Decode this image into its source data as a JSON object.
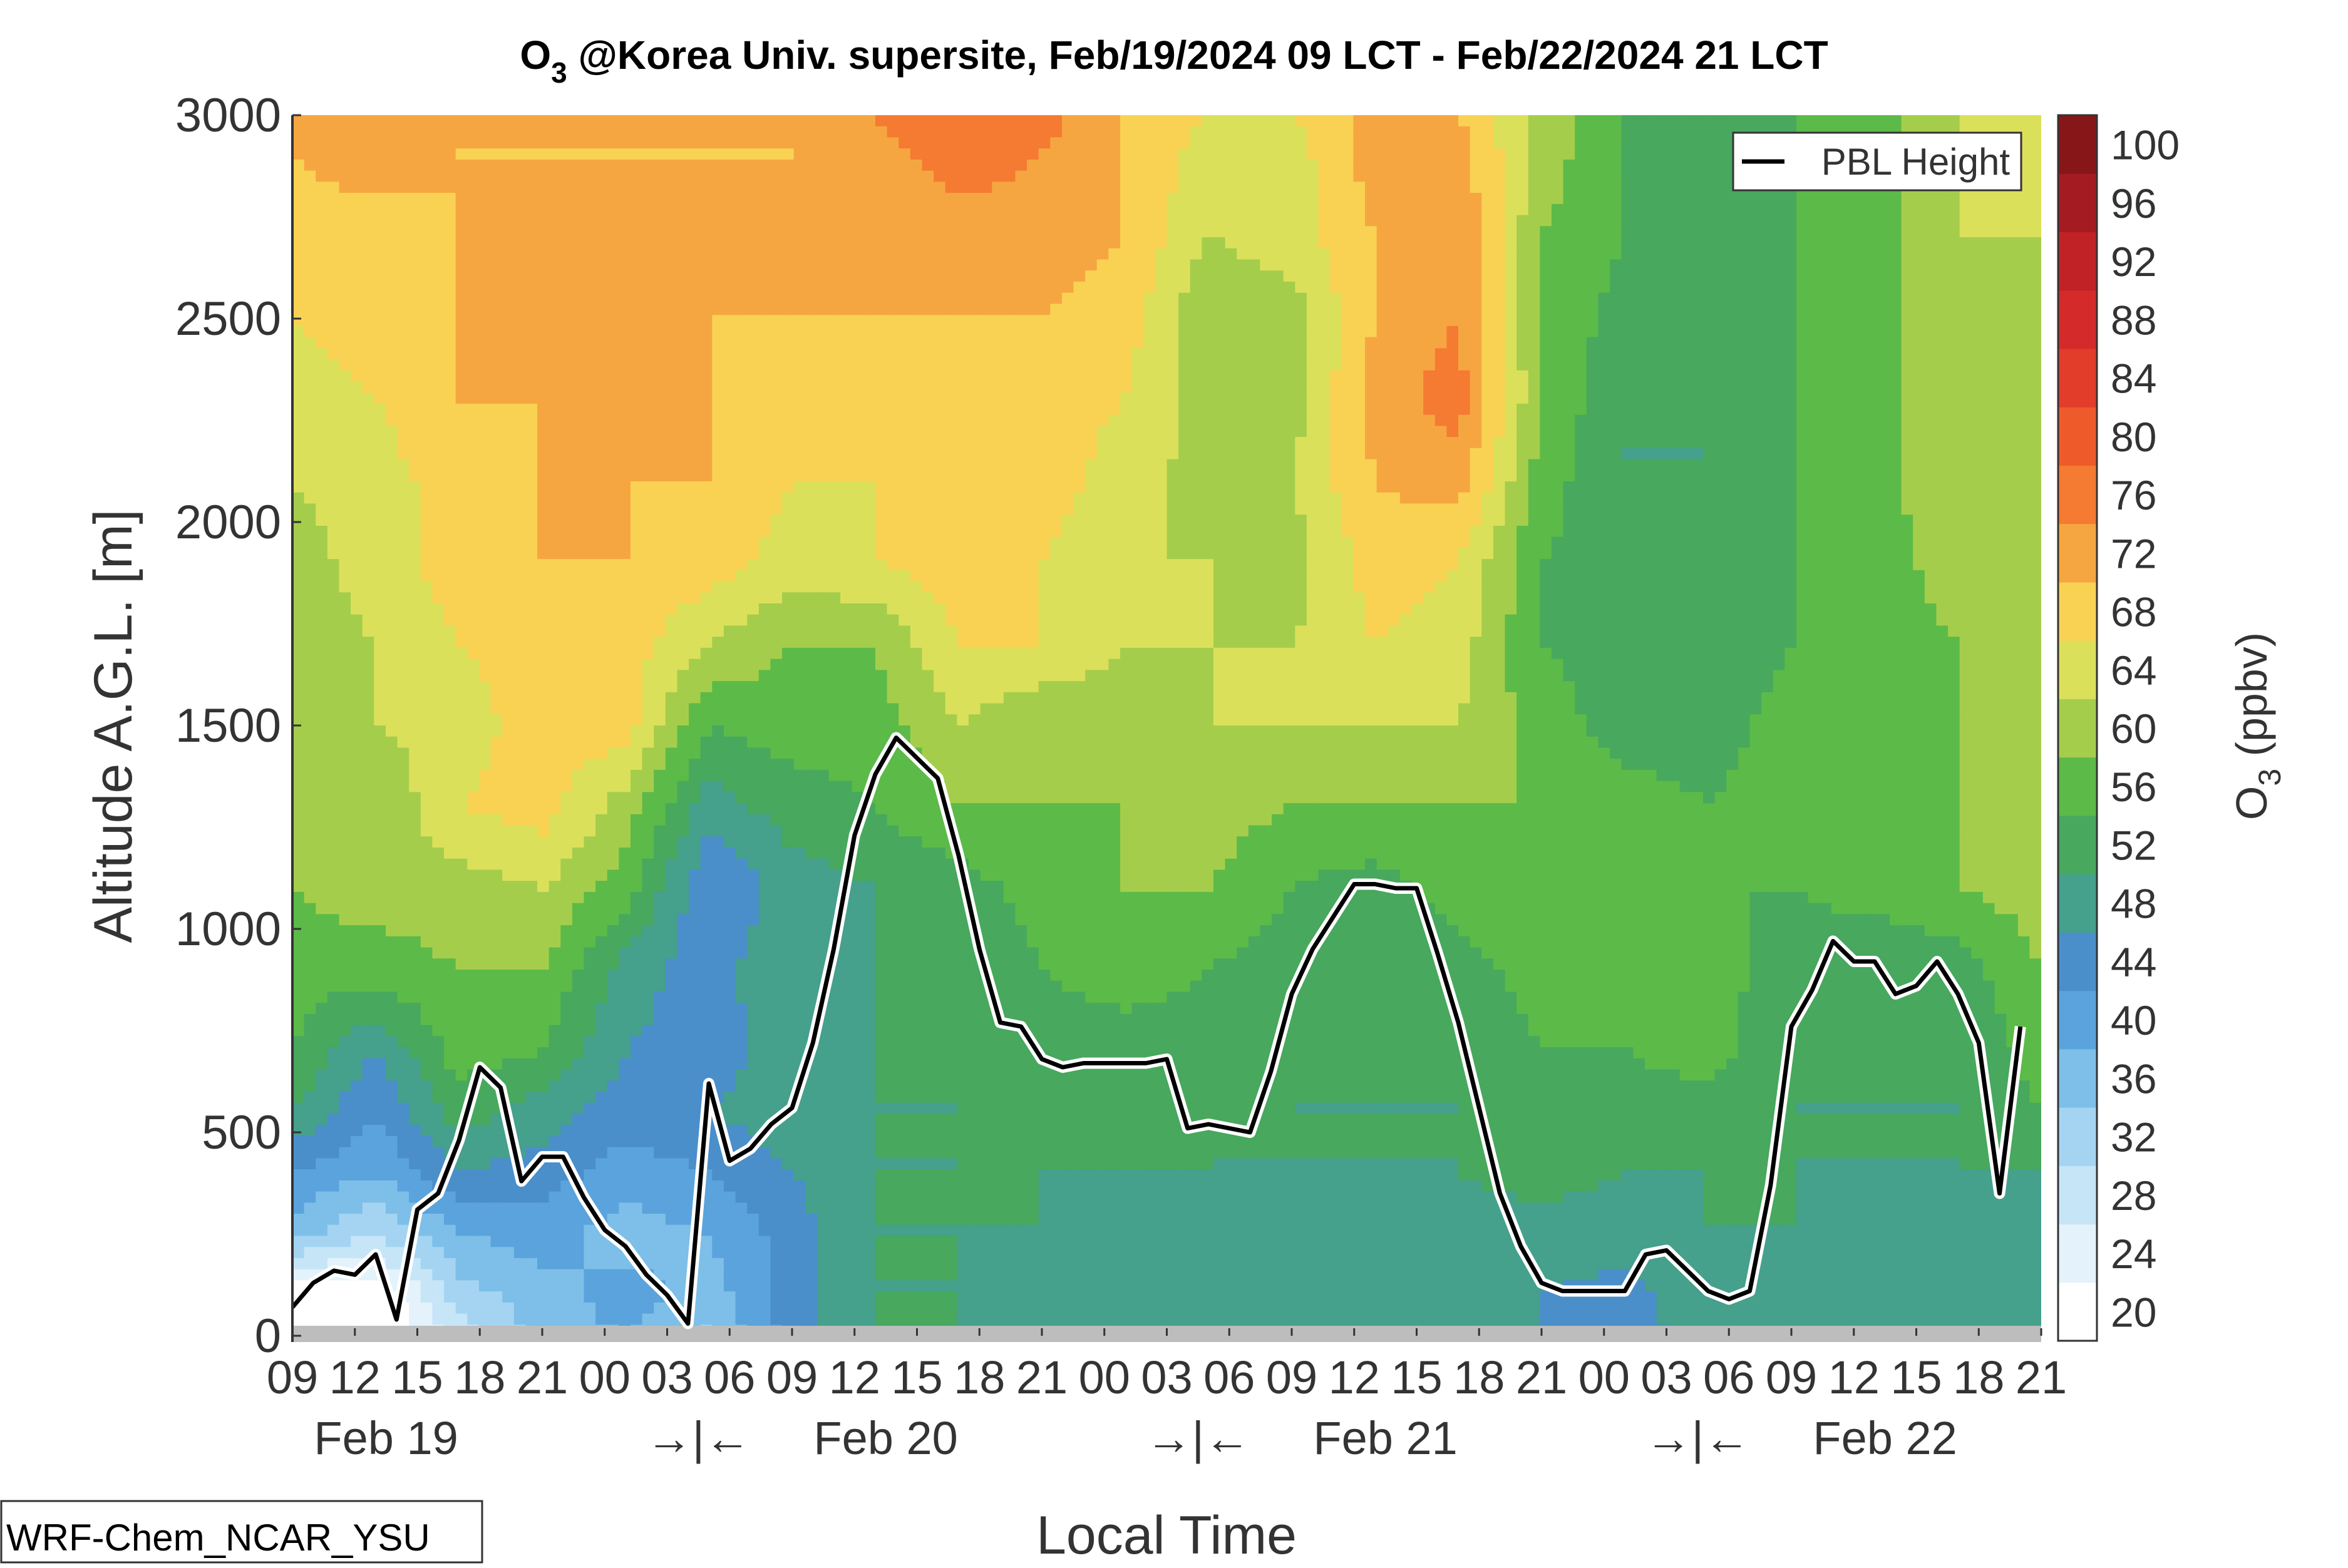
{
  "chart_data": {
    "type": "heatmap",
    "title": {
      "species": "O",
      "subscript": "3",
      "rest": " @Korea Univ. supersite, Feb/19/2024 09 LCT - Feb/22/2024 21 LCT"
    },
    "xlabel": "Local Time",
    "ylabel": "Altitude A.G.L. [m]",
    "x_tick_labels": [
      "09",
      "12",
      "15",
      "18",
      "21",
      "00",
      "03",
      "06",
      "09",
      "12",
      "15",
      "18",
      "21",
      "00",
      "03",
      "06",
      "09",
      "12",
      "15",
      "18",
      "21",
      "00",
      "03",
      "06",
      "09",
      "12",
      "15",
      "18",
      "21"
    ],
    "x_day_labels": [
      {
        "text": "Feb 19",
        "at_tick": 1.5
      },
      {
        "text": "→|←",
        "at_tick": 6.5
      },
      {
        "text": "Feb 20",
        "at_tick": 9.5
      },
      {
        "text": "→|←",
        "at_tick": 14.5
      },
      {
        "text": "Feb 21",
        "at_tick": 17.5
      },
      {
        "text": "→|←",
        "at_tick": 22.5
      },
      {
        "text": "Feb 22",
        "at_tick": 25.5
      }
    ],
    "ylim": [
      0,
      3000
    ],
    "y_ticks": [
      0,
      500,
      1000,
      1500,
      2000,
      2500,
      3000
    ],
    "colorbar": {
      "label": "O",
      "label_subscript": "3",
      "label_unit": " (ppbv)",
      "levels": [
        20,
        24,
        28,
        32,
        36,
        40,
        44,
        48,
        52,
        56,
        60,
        64,
        68,
        72,
        76,
        80,
        84,
        88,
        92,
        96,
        100
      ],
      "colors": [
        "#ffffff",
        "#e3f2fb",
        "#c6e5f7",
        "#a4d4f1",
        "#7dbfe8",
        "#5ba3dc",
        "#4a8fca",
        "#45a08c",
        "#47a85e",
        "#5cba48",
        "#a5cd4c",
        "#dbe05a",
        "#f9d253",
        "#f6a640",
        "#f57a32",
        "#ee5a2a",
        "#e23c2a",
        "#d42a2a",
        "#c02226",
        "#a41c22",
        "#861618"
      ]
    },
    "legend": {
      "entries": [
        "PBL Height"
      ],
      "placement": "top-right"
    },
    "series": [
      {
        "name": "PBL Height",
        "x_hours": [
          0,
          1,
          2,
          3,
          4,
          5,
          6,
          7,
          8,
          9,
          10,
          11,
          12,
          13,
          14,
          15,
          16,
          17,
          18,
          19,
          20,
          21,
          22,
          23,
          24,
          25,
          26,
          27,
          28,
          29,
          30,
          31,
          32,
          33,
          34,
          35,
          36,
          37,
          38,
          39,
          40,
          41,
          42,
          43,
          44,
          45,
          46,
          47,
          48,
          49,
          50,
          51,
          52,
          53,
          54,
          55,
          56,
          57,
          58,
          59,
          60,
          61,
          62,
          63,
          64,
          65,
          66,
          67,
          68,
          69,
          70,
          71,
          72,
          73,
          74,
          75,
          76,
          77,
          78,
          79,
          80,
          81,
          82,
          83,
          84
        ],
        "values": [
          70,
          130,
          160,
          150,
          200,
          40,
          310,
          350,
          480,
          660,
          610,
          380,
          440,
          440,
          340,
          260,
          220,
          150,
          100,
          30,
          620,
          430,
          460,
          520,
          560,
          720,
          950,
          1230,
          1380,
          1470,
          1420,
          1370,
          1180,
          950,
          770,
          760,
          680,
          660,
          670,
          670,
          670,
          670,
          680,
          510,
          520,
          510,
          500,
          650,
          840,
          950,
          1030,
          1110,
          1110,
          1100,
          1100,
          940,
          770,
          560,
          350,
          220,
          130,
          110,
          110,
          110,
          110,
          200,
          210,
          160,
          110,
          90,
          110,
          370,
          760,
          850,
          970,
          920,
          920,
          840,
          860,
          920,
          840,
          720,
          350,
          760
        ]
      }
    ],
    "ozone_field": {
      "x_hours": [
        0,
        4,
        8,
        12,
        16,
        20,
        24,
        28,
        32,
        36,
        40,
        44,
        48,
        52,
        56,
        60,
        64,
        68,
        72,
        76,
        80,
        84
      ],
      "z_levels": [
        0,
        100,
        250,
        400,
        550,
        700,
        900,
        1100,
        1300,
        1500,
        1700,
        1900,
        2100,
        2300,
        2500,
        2700,
        2900,
        3000
      ],
      "values": [
        [
          18,
          18,
          30,
          38,
          40,
          35,
          46,
          52,
          52,
          50,
          48,
          48,
          48,
          48,
          48,
          48,
          46,
          50,
          50,
          48,
          48,
          48
        ],
        [
          20,
          20,
          34,
          38,
          42,
          38,
          46,
          52,
          52,
          50,
          49,
          48,
          48,
          48,
          48,
          48,
          47,
          50,
          50,
          48,
          48,
          48
        ],
        [
          38,
          32,
          40,
          42,
          38,
          40,
          46,
          52,
          52,
          52,
          50,
          50,
          50,
          50,
          50,
          50,
          49,
          52,
          52,
          50,
          50,
          50
        ],
        [
          44,
          40,
          48,
          46,
          42,
          44,
          48,
          52,
          52,
          52,
          52,
          52,
          52,
          52,
          52,
          54,
          52,
          52,
          52,
          52,
          52,
          52
        ],
        [
          52,
          44,
          54,
          50,
          46,
          48,
          50,
          52,
          52,
          53,
          53,
          52,
          52,
          52,
          52,
          54,
          54,
          54,
          52,
          52,
          52,
          56
        ],
        [
          56,
          48,
          58,
          56,
          48,
          46,
          50,
          52,
          52,
          54,
          54,
          54,
          52,
          52,
          52,
          56,
          56,
          58,
          52,
          52,
          52,
          58
        ],
        [
          58,
          58,
          60,
          60,
          50,
          46,
          52,
          52,
          52,
          56,
          58,
          56,
          54,
          52,
          54,
          58,
          58,
          58,
          54,
          52,
          54,
          60
        ],
        [
          60,
          62,
          62,
          64,
          58,
          44,
          50,
          52,
          54,
          58,
          60,
          60,
          56,
          54,
          58,
          60,
          58,
          56,
          56,
          58,
          60,
          62
        ],
        [
          60,
          60,
          68,
          70,
          62,
          50,
          54,
          56,
          60,
          60,
          60,
          62,
          60,
          60,
          60,
          60,
          58,
          56,
          58,
          58,
          60,
          62
        ],
        [
          62,
          64,
          66,
          70,
          70,
          56,
          58,
          58,
          64,
          60,
          62,
          64,
          64,
          64,
          64,
          58,
          54,
          54,
          58,
          60,
          60,
          62
        ],
        [
          62,
          64,
          68,
          70,
          70,
          64,
          60,
          60,
          68,
          68,
          64,
          64,
          64,
          68,
          66,
          56,
          54,
          52,
          56,
          58,
          60,
          62
        ],
        [
          62,
          66,
          70,
          72,
          72,
          70,
          66,
          68,
          70,
          68,
          64,
          64,
          62,
          70,
          68,
          56,
          54,
          52,
          56,
          58,
          62,
          62
        ],
        [
          64,
          66,
          70,
          72,
          72,
          72,
          68,
          68,
          70,
          70,
          66,
          62,
          64,
          72,
          74,
          58,
          52,
          52,
          56,
          58,
          64,
          62
        ],
        [
          66,
          68,
          72,
          72,
          76,
          72,
          70,
          70,
          70,
          70,
          68,
          62,
          62,
          74,
          78,
          60,
          52,
          52,
          56,
          58,
          64,
          62
        ],
        [
          68,
          70,
          72,
          72,
          72,
          72,
          72,
          72,
          72,
          72,
          70,
          60,
          62,
          72,
          76,
          60,
          54,
          52,
          56,
          58,
          64,
          62
        ],
        [
          70,
          70,
          72,
          72,
          72,
          72,
          72,
          72,
          74,
          74,
          72,
          64,
          66,
          72,
          76,
          60,
          56,
          52,
          56,
          58,
          64,
          64
        ],
        [
          72,
          74,
          72,
          72,
          72,
          72,
          72,
          74,
          78,
          76,
          72,
          66,
          66,
          74,
          74,
          62,
          56,
          52,
          56,
          58,
          64,
          64
        ],
        [
          72,
          74,
          72,
          72,
          72,
          72,
          72,
          76,
          80,
          78,
          72,
          68,
          68,
          74,
          72,
          62,
          56,
          52,
          56,
          58,
          64,
          64
        ]
      ]
    }
  },
  "footer": {
    "model_label": "WRF-Chem_NCAR_YSU"
  }
}
